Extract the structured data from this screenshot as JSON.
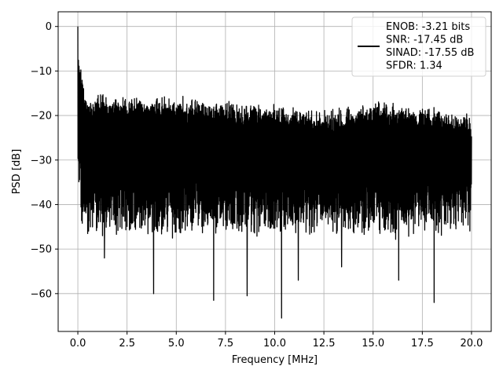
{
  "chart_data": {
    "type": "line",
    "title": "",
    "xlabel": "Frequency [MHz]",
    "ylabel": "PSD [dB]",
    "xlim": [
      -1.0,
      21.0
    ],
    "ylim": [
      -68.5,
      3.3
    ],
    "x_ticks": [
      0.0,
      2.5,
      5.0,
      7.5,
      10.0,
      12.5,
      15.0,
      17.5,
      20.0
    ],
    "x_tick_labels": [
      "0.0",
      "2.5",
      "5.0",
      "7.5",
      "10.0",
      "12.5",
      "15.0",
      "17.5",
      "20.0"
    ],
    "y_ticks": [
      0,
      -10,
      -20,
      -30,
      -40,
      -50,
      -60
    ],
    "y_tick_labels": [
      "0",
      "−10",
      "−20",
      "−30",
      "−40",
      "−50",
      "−60"
    ],
    "grid": true,
    "legend_position": "top-right",
    "legend_lines": [
      "ENOB: -3.21 bits",
      "SNR: -17.45 dB",
      "SINAD: -17.55 dB",
      "SFDR: 1.34"
    ],
    "series": [
      {
        "color": "#000000",
        "description": "noise-like PSD spanning 0 to 20 MHz",
        "peak": {
          "x": 0.0,
          "y": 0.0
        },
        "upper_envelope_db": [
          [
            0.2,
            -11
          ],
          [
            0.5,
            -18
          ],
          [
            1.0,
            -16
          ],
          [
            2.5,
            -17
          ],
          [
            5.0,
            -17
          ],
          [
            7.5,
            -18
          ],
          [
            10.0,
            -19
          ],
          [
            12.5,
            -20
          ],
          [
            15.0,
            -18
          ],
          [
            17.5,
            -19
          ],
          [
            20.0,
            -21
          ]
        ],
        "lower_floor_db": -45,
        "notable_minima": [
          {
            "x": 1.35,
            "y": -52
          },
          {
            "x": 3.85,
            "y": -60
          },
          {
            "x": 6.9,
            "y": -61.5
          },
          {
            "x": 8.6,
            "y": -60.5
          },
          {
            "x": 10.35,
            "y": -65.5
          },
          {
            "x": 11.2,
            "y": -57
          },
          {
            "x": 13.4,
            "y": -54
          },
          {
            "x": 16.3,
            "y": -57
          },
          {
            "x": 18.1,
            "y": -62
          }
        ]
      }
    ]
  }
}
